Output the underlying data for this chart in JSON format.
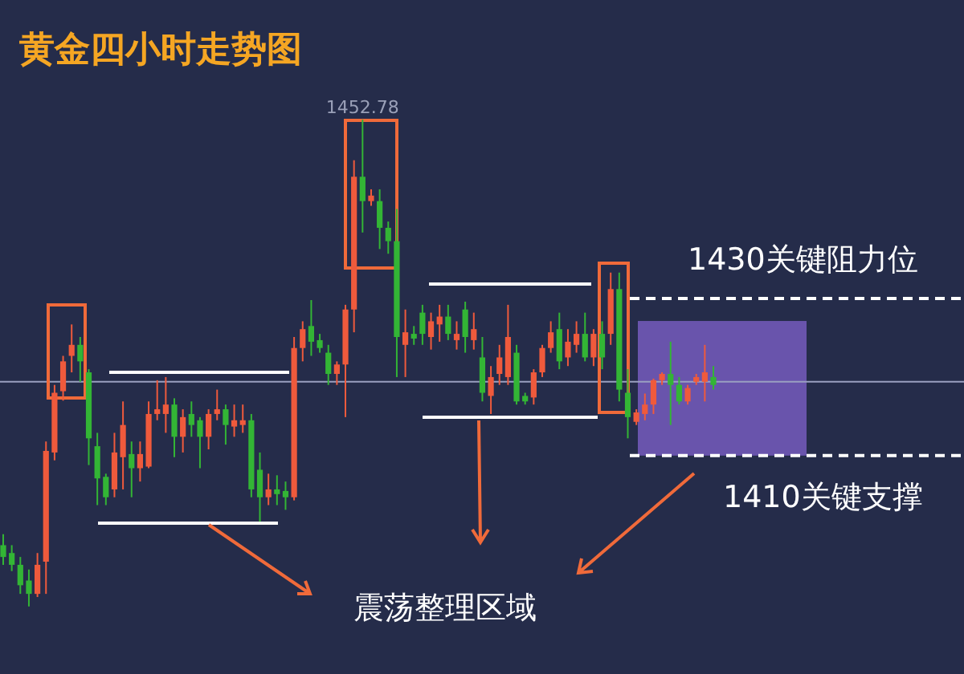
{
  "chart_data": {
    "type": "candlestick",
    "title": "黄金四小时走势图",
    "categories": [
      null,
      null,
      null,
      null,
      null,
      null,
      null,
      null,
      null,
      null,
      null,
      null,
      null,
      null,
      null,
      null,
      null,
      null,
      null,
      null,
      null,
      null,
      null,
      null,
      null,
      null,
      null,
      null,
      null,
      null,
      null,
      null,
      null,
      null,
      null,
      null,
      null,
      null,
      null,
      null,
      null,
      null,
      null,
      null,
      null,
      null,
      null,
      null,
      null,
      null,
      null,
      null,
      null,
      null,
      null,
      null,
      null,
      null,
      null,
      null,
      null,
      null,
      null,
      null,
      null,
      null,
      null,
      null,
      null,
      null,
      null,
      null,
      null,
      null,
      null,
      null,
      null,
      null,
      null,
      null,
      null,
      null,
      null,
      null
    ],
    "ohlc": [
      [
        1398.6,
        1400.0,
        1396.1,
        1397.1
      ],
      [
        1397.6,
        1398.6,
        1395.3,
        1396.1
      ],
      [
        1396.1,
        1397.1,
        1392.4,
        1393.5
      ],
      [
        1394.1,
        1395.5,
        1390.8,
        1392.4
      ],
      [
        1392.4,
        1397.6,
        1392.0,
        1396.1
      ],
      [
        1396.5,
        1411.8,
        1392.4,
        1410.6
      ],
      [
        1410.4,
        1419.0,
        1409.4,
        1418.0
      ],
      [
        1418.2,
        1422.7,
        1417.0,
        1422.0
      ],
      [
        1422.7,
        1426.7,
        1420.6,
        1424.1
      ],
      [
        1424.1,
        1425.1,
        1419.4,
        1422.0
      ],
      [
        1420.6,
        1421.0,
        1408.8,
        1412.2
      ],
      [
        1411.2,
        1412.9,
        1403.7,
        1407.1
      ],
      [
        1407.3,
        1407.7,
        1403.7,
        1404.7
      ],
      [
        1405.7,
        1412.9,
        1404.7,
        1410.4
      ],
      [
        1409.8,
        1416.9,
        1405.7,
        1413.9
      ],
      [
        1410.2,
        1411.8,
        1404.7,
        1408.4
      ],
      [
        1408.4,
        1411.8,
        1406.7,
        1410.2
      ],
      [
        1408.6,
        1416.9,
        1408.4,
        1415.3
      ],
      [
        1415.3,
        1419.6,
        1414.5,
        1415.9
      ],
      [
        1415.3,
        1420.0,
        1412.9,
        1416.5
      ],
      [
        1416.5,
        1417.3,
        1409.8,
        1412.4
      ],
      [
        1412.4,
        1415.9,
        1410.4,
        1414.9
      ],
      [
        1415.3,
        1416.9,
        1412.4,
        1413.9
      ],
      [
        1414.5,
        1414.9,
        1408.4,
        1412.4
      ],
      [
        1412.4,
        1415.9,
        1410.8,
        1415.3
      ],
      [
        1415.3,
        1418.4,
        1414.5,
        1415.9
      ],
      [
        1415.9,
        1416.5,
        1411.4,
        1413.9
      ],
      [
        1413.7,
        1416.5,
        1412.4,
        1414.5
      ],
      [
        1413.9,
        1416.5,
        1412.9,
        1414.5
      ],
      [
        1414.5,
        1415.3,
        1404.7,
        1405.7
      ],
      [
        1408.2,
        1410.4,
        1401.6,
        1404.7
      ],
      [
        1404.7,
        1407.7,
        1403.7,
        1405.7
      ],
      [
        1405.7,
        1407.5,
        1403.7,
        1405.1
      ],
      [
        1405.5,
        1406.7,
        1403.1,
        1404.7
      ],
      [
        1404.7,
        1425.1,
        1404.3,
        1423.7
      ],
      [
        1423.7,
        1427.1,
        1422.0,
        1426.1
      ],
      [
        1426.5,
        1429.8,
        1422.7,
        1424.5
      ],
      [
        1424.7,
        1425.5,
        1423.1,
        1423.7
      ],
      [
        1423.1,
        1424.1,
        1419.0,
        1420.4
      ],
      [
        1420.4,
        1422.0,
        1419.0,
        1421.6
      ],
      [
        1421.6,
        1429.2,
        1414.9,
        1428.6
      ],
      [
        1428.6,
        1447.6,
        1425.7,
        1445.5
      ],
      [
        1445.5,
        1452.78,
        1438.4,
        1442.4
      ],
      [
        1442.4,
        1443.9,
        1441.8,
        1443.1
      ],
      [
        1442.4,
        1443.9,
        1436.3,
        1439.0
      ],
      [
        1439.0,
        1439.8,
        1435.7,
        1437.3
      ],
      [
        1437.3,
        1441.4,
        1420.0,
        1425.1
      ],
      [
        1424.1,
        1428.6,
        1420.0,
        1425.7
      ],
      [
        1425.5,
        1426.5,
        1424.1,
        1424.9
      ],
      [
        1428.2,
        1429.2,
        1424.1,
        1425.5
      ],
      [
        1425.1,
        1428.2,
        1423.5,
        1427.1
      ],
      [
        1426.7,
        1429.2,
        1424.5,
        1427.7
      ],
      [
        1427.7,
        1429.2,
        1424.7,
        1425.5
      ],
      [
        1424.7,
        1427.1,
        1423.5,
        1425.5
      ],
      [
        1428.6,
        1429.6,
        1423.1,
        1425.1
      ],
      [
        1424.7,
        1428.2,
        1423.5,
        1426.1
      ],
      [
        1422.5,
        1425.1,
        1416.9,
        1418.0
      ],
      [
        1417.6,
        1421.4,
        1415.3,
        1420.0
      ],
      [
        1420.4,
        1424.1,
        1419.0,
        1422.5
      ],
      [
        1420.0,
        1429.2,
        1419.0,
        1425.1
      ],
      [
        1423.1,
        1424.1,
        1416.5,
        1416.9
      ],
      [
        1417.6,
        1418.0,
        1416.5,
        1416.9
      ],
      [
        1417.4,
        1421.0,
        1416.5,
        1420.6
      ],
      [
        1420.6,
        1424.1,
        1420.0,
        1423.7
      ],
      [
        1423.7,
        1427.1,
        1423.1,
        1425.7
      ],
      [
        1426.1,
        1428.2,
        1421.0,
        1422.0
      ],
      [
        1422.5,
        1426.1,
        1421.4,
        1424.5
      ],
      [
        1424.1,
        1427.1,
        1423.1,
        1425.5
      ],
      [
        1425.5,
        1428.2,
        1422.0,
        1422.5
      ],
      [
        1422.5,
        1426.1,
        1421.4,
        1425.5
      ],
      [
        1425.5,
        1427.1,
        1421.0,
        1422.5
      ],
      [
        1425.5,
        1433.3,
        1424.1,
        1431.2
      ],
      [
        1431.2,
        1433.3,
        1416.9,
        1418.4
      ],
      [
        1418.0,
        1421.0,
        1412.2,
        1414.9
      ],
      [
        1414.3,
        1415.9,
        1413.9,
        1415.5
      ],
      [
        1415.3,
        1417.9,
        1414.5,
        1416.5
      ],
      [
        1416.5,
        1419.8,
        1415.3,
        1419.6
      ],
      [
        1419.6,
        1420.6,
        1419.0,
        1420.4
      ],
      [
        1420.4,
        1424.5,
        1413.9,
        1419.0
      ],
      [
        1419.0,
        1420.0,
        1416.5,
        1416.9
      ],
      [
        1416.9,
        1419.0,
        1416.5,
        1418.6
      ],
      [
        1419.4,
        1420.4,
        1419.0,
        1420.0
      ],
      [
        1419.4,
        1424.1,
        1416.9,
        1420.6
      ],
      [
        1420.0,
        1421.4,
        1418.4,
        1419.0
      ]
    ],
    "colors": [
      "#33b535",
      "#33b535",
      "#33b535",
      "#33b535",
      "#ef5a3c",
      "#ef5a3c",
      "#ef5a3c",
      "#ef5a3c",
      "#ef5a3c",
      "#33b535",
      "#33b535",
      "#33b535",
      "#33b535",
      "#ef5a3c",
      "#ef5a3c",
      "#33b535",
      "#ef5a3c",
      "#ef5a3c",
      "#ef5a3c",
      "#ef5a3c",
      "#33b535",
      "#ef5a3c",
      "#33b535",
      "#33b535",
      "#ef5a3c",
      "#ef5a3c",
      "#33b535",
      "#ef5a3c",
      "#ef5a3c",
      "#33b535",
      "#33b535",
      "#ef5a3c",
      "#33b535",
      "#33b535",
      "#ef5a3c",
      "#ef5a3c",
      "#33b535",
      "#33b535",
      "#33b535",
      "#ef5a3c",
      "#ef5a3c",
      "#ef5a3c",
      "#33b535",
      "#ef5a3c",
      "#33b535",
      "#33b535",
      "#33b535",
      "#ef5a3c",
      "#33b535",
      "#33b535",
      "#ef5a3c",
      "#ef5a3c",
      "#33b535",
      "#ef5a3c",
      "#33b535",
      "#ef5a3c",
      "#33b535",
      "#ef5a3c",
      "#ef5a3c",
      "#ef5a3c",
      "#33b535",
      "#33b535",
      "#ef5a3c",
      "#ef5a3c",
      "#ef5a3c",
      "#33b535",
      "#ef5a3c",
      "#ef5a3c",
      "#33b535",
      "#ef5a3c",
      "#33b535",
      "#ef5a3c",
      "#33b535",
      "#33b535",
      "#ef5a3c",
      "#ef5a3c",
      "#ef5a3c",
      "#ef5a3c",
      "#33b535",
      "#33b535",
      "#ef5a3c",
      "#ef5a3c",
      "#ef5a3c",
      "#33b535"
    ],
    "ylim": [
      1382.2,
      1468.0
    ],
    "ref_lines": [
      {
        "axis": "y",
        "value": 1430,
        "label": "1430关键阻力位",
        "color": "#ffffff",
        "line_style": "dashed"
      },
      {
        "axis": "y",
        "value": 1410,
        "label": "1410关键支撑",
        "color": "#ffffff",
        "line_style": "dashed"
      },
      {
        "axis": "y",
        "value": 1419.4,
        "color": "#9a9fc0",
        "line_style": "solid"
      }
    ],
    "annotations": [
      "1452.78",
      "震荡整理区域"
    ]
  }
}
